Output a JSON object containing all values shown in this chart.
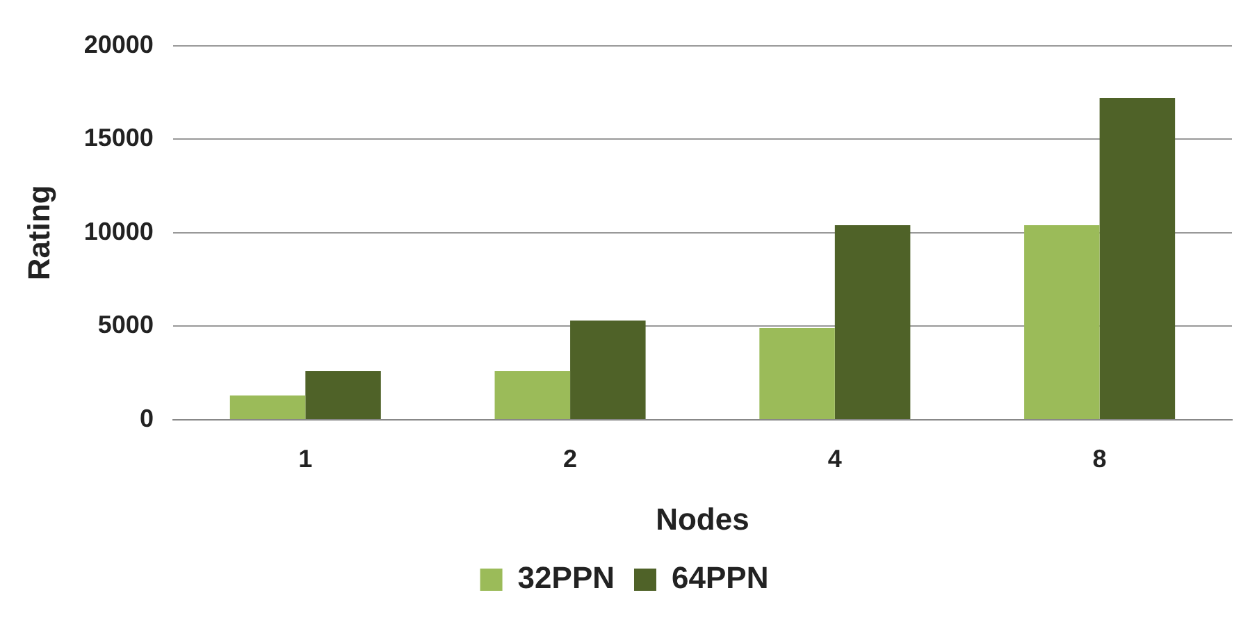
{
  "chart_data": {
    "type": "bar",
    "xlabel": "Nodes",
    "ylabel": "Rating",
    "categories": [
      "1",
      "2",
      "4",
      "8"
    ],
    "series": [
      {
        "name": "32PPN",
        "color": "#9bbb59",
        "values": [
          1300,
          2600,
          4900,
          10400
        ]
      },
      {
        "name": "64PPN",
        "color": "#4f6228",
        "values": [
          2600,
          5300,
          10400,
          17200
        ]
      }
    ],
    "ylim": [
      0,
      20000
    ],
    "yticks": [
      0,
      5000,
      10000,
      15000,
      20000
    ],
    "grid": "y",
    "legend": "bottom"
  }
}
